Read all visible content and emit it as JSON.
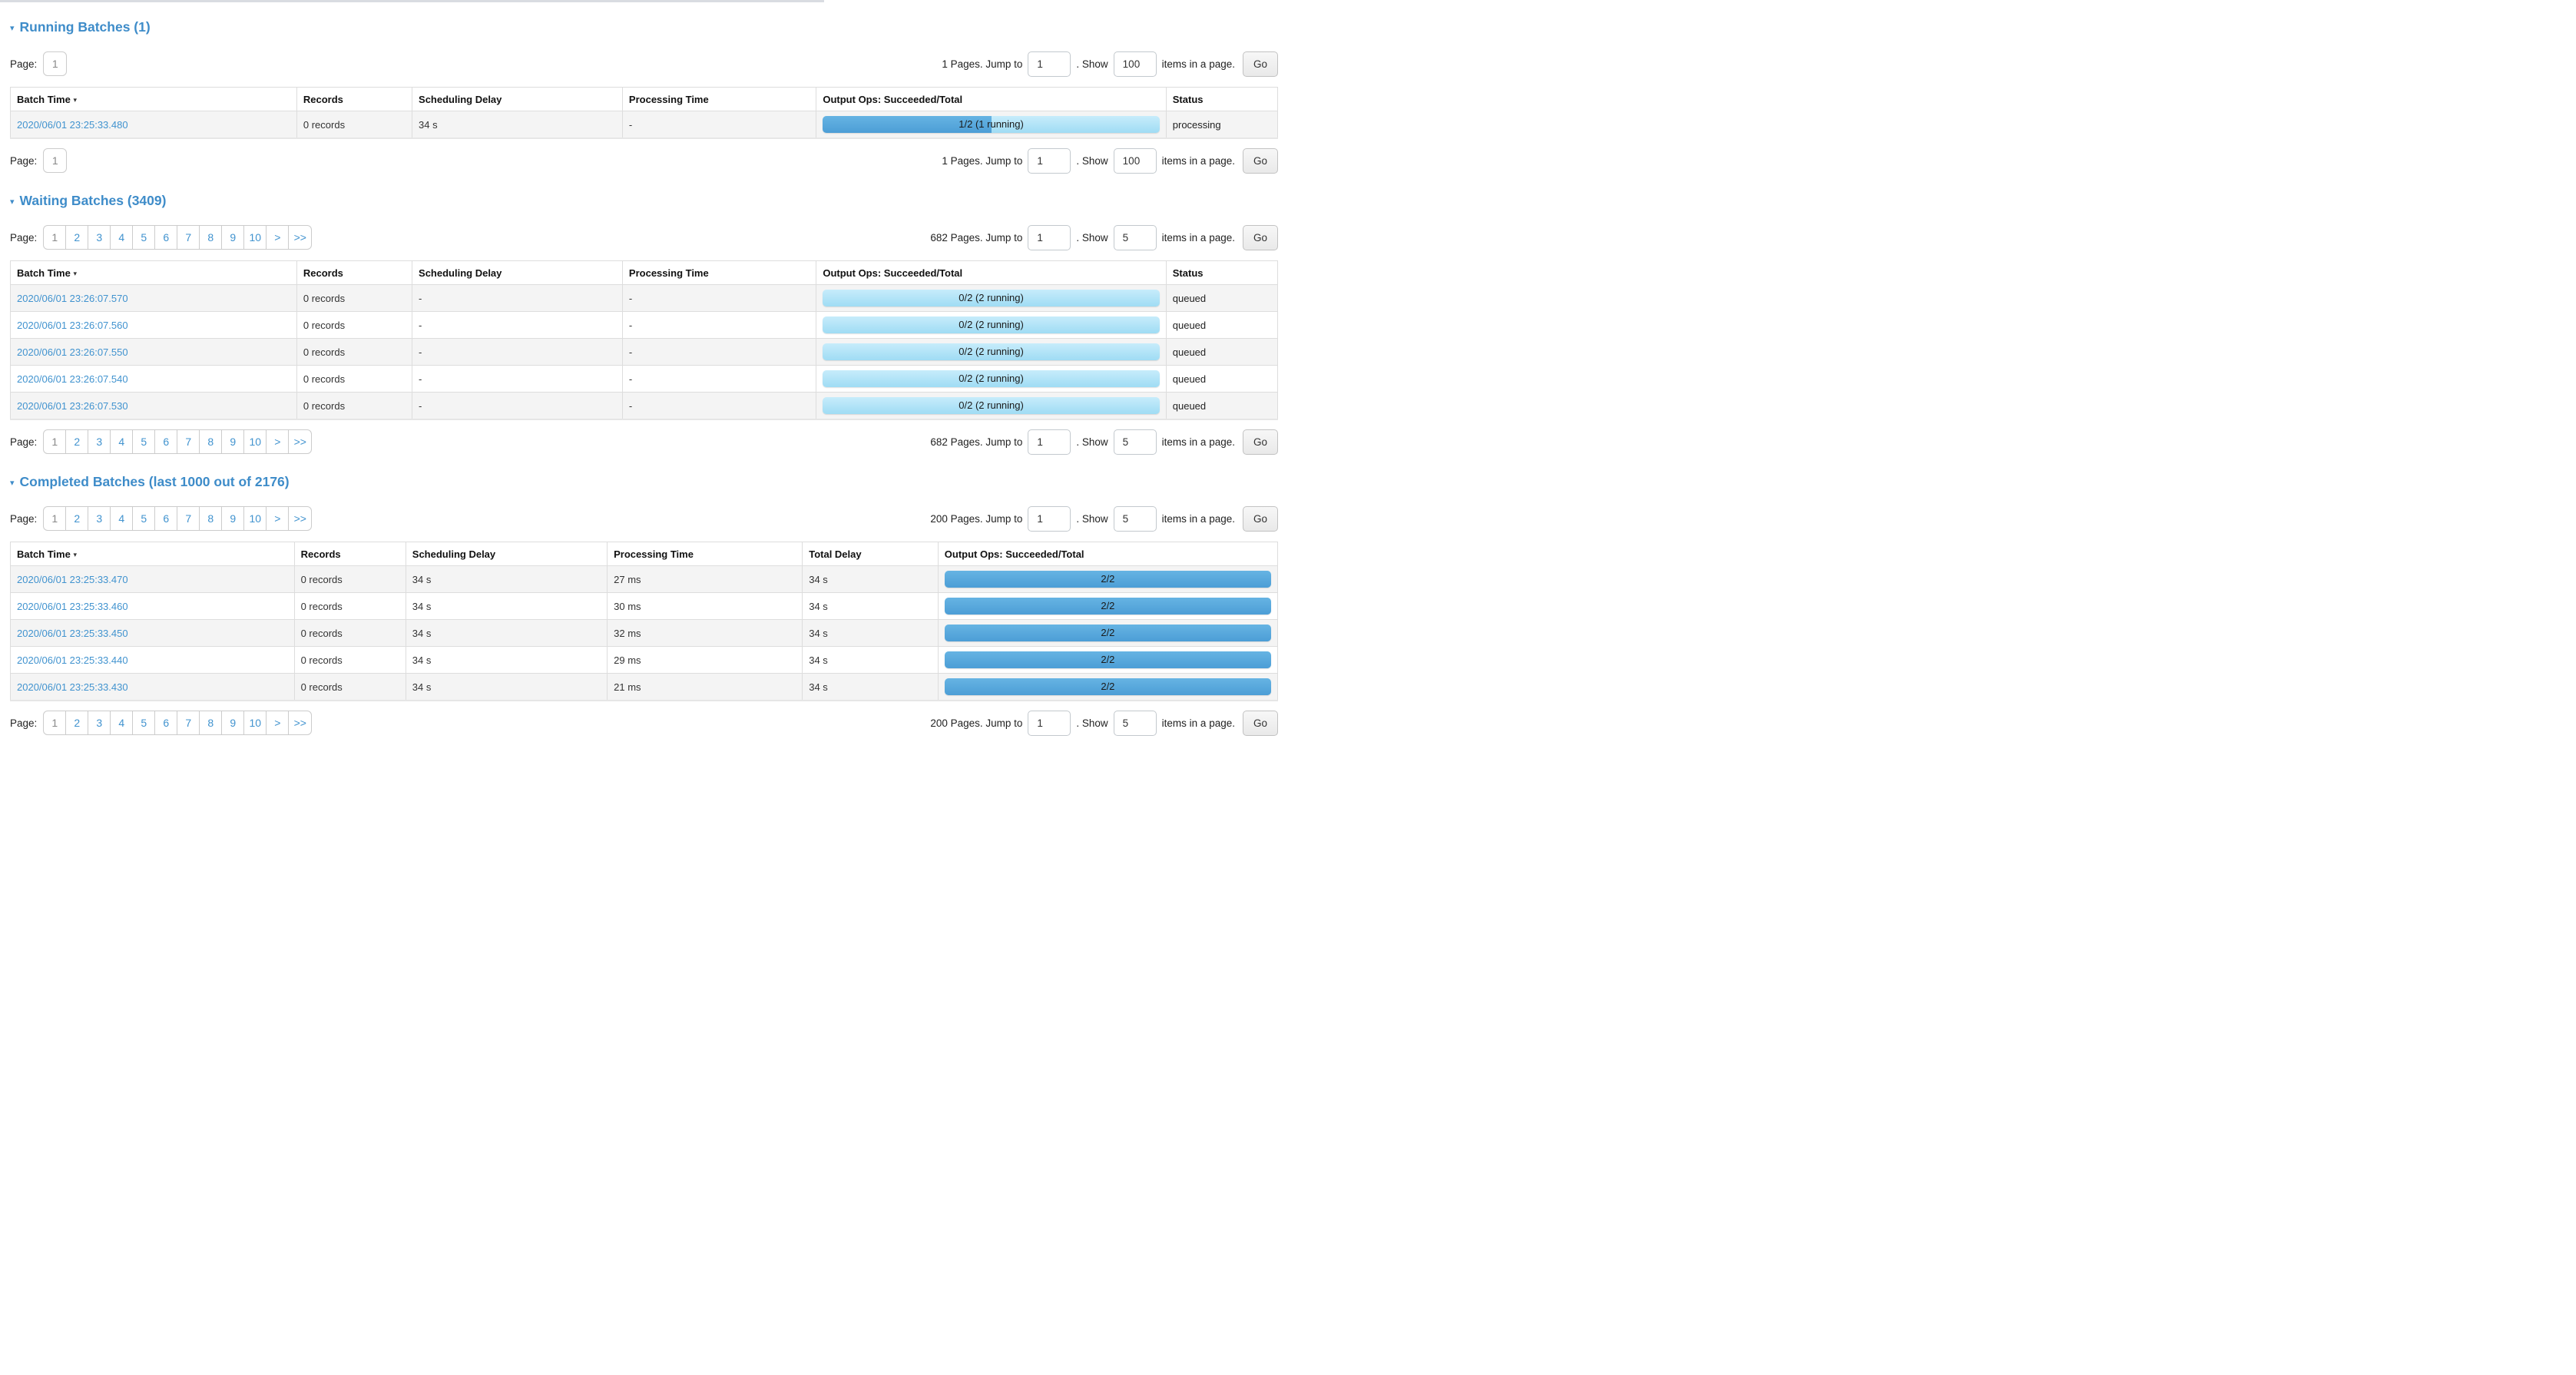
{
  "colors": {
    "heading_blue": "#3e8cc9",
    "link_blue": "#4193cf",
    "bar_completed": "#4c9ed6",
    "bar_running_light": "#9fdcf4",
    "row_stripe": "#f4f4f4"
  },
  "sections": {
    "running": {
      "caret": "▾",
      "title": "Running Batches (1)",
      "pager": {
        "label": "Page:",
        "pages": [
          "1"
        ],
        "right": {
          "total": "1 Pages. Jump to",
          "jump": "1",
          "show_label": ". Show",
          "show": "100",
          "tail": "items in a page.",
          "go": "Go"
        }
      },
      "table": {
        "headers": [
          "Batch Time",
          "Records",
          "Scheduling Delay",
          "Processing Time",
          "Output Ops: Succeeded/Total",
          "Status"
        ],
        "sort_arrow": "▾",
        "rows": [
          {
            "batch_time": "2020/06/01 23:25:33.480",
            "records": "0 records",
            "scheduling_delay": "34 s",
            "processing_time": "-",
            "output_ops": {
              "label": "1/2 (1 running)",
              "completed_pct": 50
            },
            "status": "processing"
          }
        ]
      }
    },
    "waiting": {
      "caret": "▾",
      "title": "Waiting Batches (3409)",
      "pager": {
        "label": "Page:",
        "pages": [
          "1",
          "2",
          "3",
          "4",
          "5",
          "6",
          "7",
          "8",
          "9",
          "10",
          ">",
          ">>"
        ],
        "right": {
          "total": "682 Pages. Jump to",
          "jump": "1",
          "show_label": ". Show",
          "show": "5",
          "tail": "items in a page.",
          "go": "Go"
        }
      },
      "table": {
        "headers": [
          "Batch Time",
          "Records",
          "Scheduling Delay",
          "Processing Time",
          "Output Ops: Succeeded/Total",
          "Status"
        ],
        "sort_arrow": "▾",
        "rows": [
          {
            "batch_time": "2020/06/01 23:26:07.570",
            "records": "0 records",
            "scheduling_delay": "-",
            "processing_time": "-",
            "output_ops": {
              "label": "0/2 (2 running)",
              "completed_pct": 0
            },
            "status": "queued"
          },
          {
            "batch_time": "2020/06/01 23:26:07.560",
            "records": "0 records",
            "scheduling_delay": "-",
            "processing_time": "-",
            "output_ops": {
              "label": "0/2 (2 running)",
              "completed_pct": 0
            },
            "status": "queued"
          },
          {
            "batch_time": "2020/06/01 23:26:07.550",
            "records": "0 records",
            "scheduling_delay": "-",
            "processing_time": "-",
            "output_ops": {
              "label": "0/2 (2 running)",
              "completed_pct": 0
            },
            "status": "queued"
          },
          {
            "batch_time": "2020/06/01 23:26:07.540",
            "records": "0 records",
            "scheduling_delay": "-",
            "processing_time": "-",
            "output_ops": {
              "label": "0/2 (2 running)",
              "completed_pct": 0
            },
            "status": "queued"
          },
          {
            "batch_time": "2020/06/01 23:26:07.530",
            "records": "0 records",
            "scheduling_delay": "-",
            "processing_time": "-",
            "output_ops": {
              "label": "0/2 (2 running)",
              "completed_pct": 0
            },
            "status": "queued"
          }
        ]
      }
    },
    "completed": {
      "caret": "▾",
      "title": "Completed Batches (last 1000 out of 2176)",
      "pager": {
        "label": "Page:",
        "pages": [
          "1",
          "2",
          "3",
          "4",
          "5",
          "6",
          "7",
          "8",
          "9",
          "10",
          ">",
          ">>"
        ],
        "right": {
          "total": "200 Pages. Jump to",
          "jump": "1",
          "show_label": ". Show",
          "show": "5",
          "tail": "items in a page.",
          "go": "Go"
        }
      },
      "table": {
        "headers": [
          "Batch Time",
          "Records",
          "Scheduling Delay",
          "Processing Time",
          "Total Delay",
          "Output Ops: Succeeded/Total"
        ],
        "sort_arrow": "▾",
        "rows": [
          {
            "batch_time": "2020/06/01 23:25:33.470",
            "records": "0 records",
            "scheduling_delay": "34 s",
            "processing_time": "27 ms",
            "total_delay": "34 s",
            "output_ops": {
              "label": "2/2",
              "completed_pct": 100
            }
          },
          {
            "batch_time": "2020/06/01 23:25:33.460",
            "records": "0 records",
            "scheduling_delay": "34 s",
            "processing_time": "30 ms",
            "total_delay": "34 s",
            "output_ops": {
              "label": "2/2",
              "completed_pct": 100
            }
          },
          {
            "batch_time": "2020/06/01 23:25:33.450",
            "records": "0 records",
            "scheduling_delay": "34 s",
            "processing_time": "32 ms",
            "total_delay": "34 s",
            "output_ops": {
              "label": "2/2",
              "completed_pct": 100
            }
          },
          {
            "batch_time": "2020/06/01 23:25:33.440",
            "records": "0 records",
            "scheduling_delay": "34 s",
            "processing_time": "29 ms",
            "total_delay": "34 s",
            "output_ops": {
              "label": "2/2",
              "completed_pct": 100
            }
          },
          {
            "batch_time": "2020/06/01 23:25:33.430",
            "records": "0 records",
            "scheduling_delay": "34 s",
            "processing_time": "21 ms",
            "total_delay": "34 s",
            "output_ops": {
              "label": "2/2",
              "completed_pct": 100
            }
          }
        ]
      }
    }
  }
}
